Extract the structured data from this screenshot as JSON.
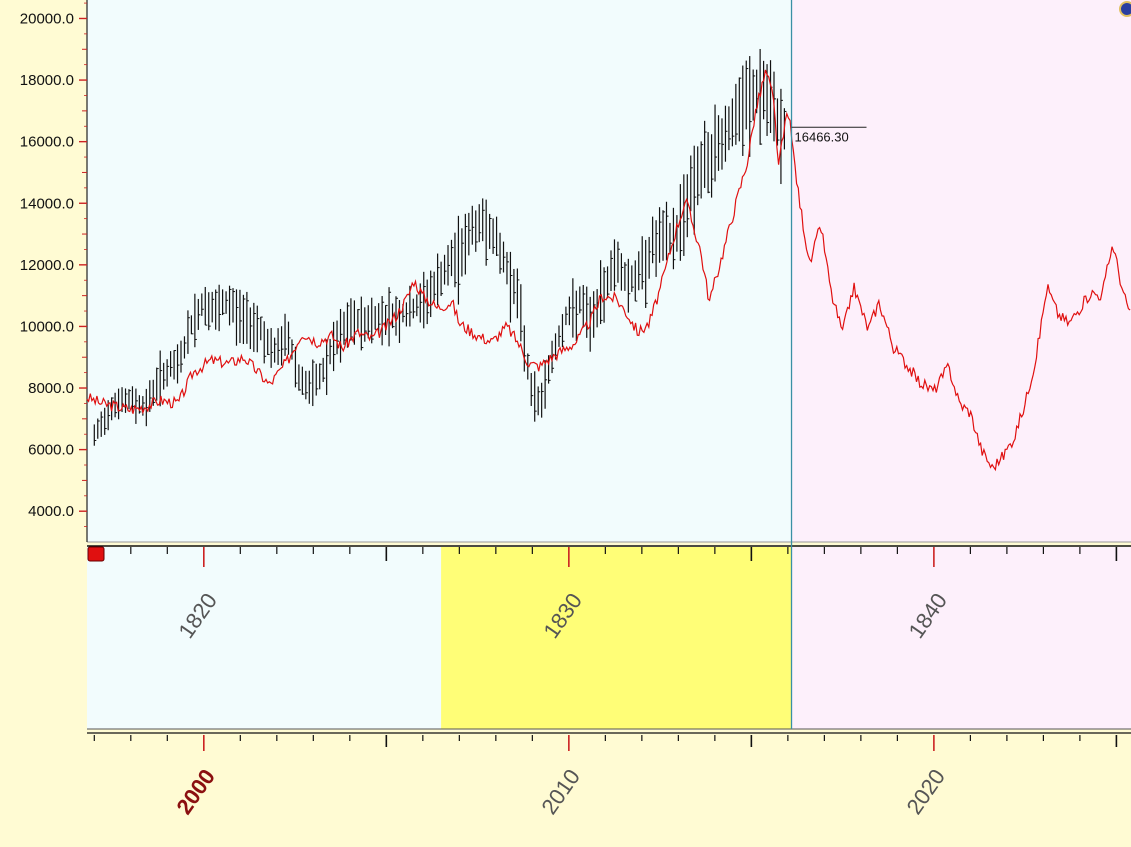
{
  "colors": {
    "page_bg": "#fffbd3",
    "history_bg": "#f2fcfd",
    "forecast_bg": "#fdf0fb",
    "highlight_bg": "#fffe77",
    "divider": "#3a8fa5",
    "price_bars": "#111111",
    "overlay_line": "#e01010",
    "marker": "#e01010",
    "tick_red": "#cc2222",
    "bold_label": "#8b1010"
  },
  "icons": {
    "range-marker": "red-square-icon",
    "corner": "globe-icon"
  },
  "chart_data": {
    "type": "line",
    "title": "",
    "yticks": [
      "20000.0",
      "18000.0",
      "16000.0",
      "14000.0",
      "12000.0",
      "10000.0",
      "8000.0",
      "6000.0",
      "4000.0"
    ],
    "ylim": [
      3000,
      20600
    ],
    "xlim": [
      1996.8,
      2025.4
    ],
    "bottom_axis": {
      "ticks": [
        "2000",
        "2010",
        "2020"
      ],
      "highlight": "2000"
    },
    "middle_axis": {
      "ticks": [
        "1820",
        "1830",
        "1840"
      ],
      "offset_years": 180
    },
    "forecast_start": 2016.1,
    "highlight_range": [
      1826.5,
      1836.1
    ],
    "callout": {
      "label": "16466.30",
      "value": 16466.3,
      "x": 2016.1
    },
    "series": [
      {
        "kind": "ohlc",
        "x_start": 1997.0,
        "x_end": 2016.0,
        "points": [
          [
            1997.0,
            6500
          ],
          [
            1997.5,
            7600
          ],
          [
            1998.0,
            7700
          ],
          [
            1998.4,
            7500
          ],
          [
            1998.8,
            8500
          ],
          [
            1999.3,
            8900
          ],
          [
            1999.7,
            10300
          ],
          [
            2000.0,
            10900
          ],
          [
            2000.3,
            10600
          ],
          [
            2000.7,
            10900
          ],
          [
            2001.0,
            10500
          ],
          [
            2001.5,
            10200
          ],
          [
            2001.9,
            9200
          ],
          [
            2002.3,
            9900
          ],
          [
            2002.6,
            8500
          ],
          [
            2002.9,
            8100
          ],
          [
            2003.2,
            8500
          ],
          [
            2003.6,
            9600
          ],
          [
            2004.0,
            10300
          ],
          [
            2004.5,
            10300
          ],
          [
            2005.0,
            10500
          ],
          [
            2005.5,
            10500
          ],
          [
            2005.9,
            10800
          ],
          [
            2006.3,
            11400
          ],
          [
            2006.7,
            12100
          ],
          [
            2007.0,
            12600
          ],
          [
            2007.4,
            13400
          ],
          [
            2007.8,
            13500
          ],
          [
            2008.1,
            12600
          ],
          [
            2008.4,
            11800
          ],
          [
            2008.6,
            11200
          ],
          [
            2008.85,
            9000
          ],
          [
            2009.0,
            8000
          ],
          [
            2009.2,
            7600
          ],
          [
            2009.5,
            9000
          ],
          [
            2009.9,
            10400
          ],
          [
            2010.3,
            10900
          ],
          [
            2010.6,
            10300
          ],
          [
            2010.9,
            11200
          ],
          [
            2011.3,
            12400
          ],
          [
            2011.6,
            11600
          ],
          [
            2011.9,
            11800
          ],
          [
            2012.3,
            12800
          ],
          [
            2012.6,
            13100
          ],
          [
            2012.9,
            13000
          ],
          [
            2013.2,
            14300
          ],
          [
            2013.5,
            15200
          ],
          [
            2013.9,
            15700
          ],
          [
            2014.2,
            16400
          ],
          [
            2014.6,
            17000
          ],
          [
            2014.9,
            17600
          ],
          [
            2015.3,
            17900
          ],
          [
            2015.6,
            17200
          ],
          [
            2015.8,
            16800
          ],
          [
            2016.0,
            16500
          ]
        ]
      },
      {
        "kind": "line",
        "points": [
          [
            1996.8,
            7700
          ],
          [
            1997.2,
            7500
          ],
          [
            1997.6,
            7400
          ],
          [
            1998.0,
            7300
          ],
          [
            1998.4,
            7400
          ],
          [
            1998.8,
            7600
          ],
          [
            1999.3,
            7500
          ],
          [
            1999.7,
            8500
          ],
          [
            2000.2,
            8900
          ],
          [
            2000.7,
            8800
          ],
          [
            2001.1,
            9000
          ],
          [
            2001.5,
            8500
          ],
          [
            2001.8,
            8100
          ],
          [
            2002.3,
            8900
          ],
          [
            2002.7,
            9800
          ],
          [
            2003.1,
            9500
          ],
          [
            2003.5,
            9700
          ],
          [
            2003.8,
            9300
          ],
          [
            2004.2,
            9800
          ],
          [
            2004.6,
            9600
          ],
          [
            2005.0,
            10000
          ],
          [
            2005.3,
            10400
          ],
          [
            2005.6,
            11000
          ],
          [
            2005.75,
            11500
          ],
          [
            2006.0,
            11000
          ],
          [
            2006.4,
            10600
          ],
          [
            2006.8,
            10800
          ],
          [
            2007.0,
            10100
          ],
          [
            2007.5,
            9700
          ],
          [
            2007.9,
            9500
          ],
          [
            2008.3,
            10000
          ],
          [
            2008.6,
            9500
          ],
          [
            2008.9,
            8800
          ],
          [
            2009.2,
            8700
          ],
          [
            2009.4,
            8900
          ],
          [
            2009.8,
            9200
          ],
          [
            2010.2,
            9500
          ],
          [
            2010.6,
            10200
          ],
          [
            2010.9,
            11000
          ],
          [
            2011.3,
            10900
          ],
          [
            2011.6,
            10400
          ],
          [
            2011.9,
            9800
          ],
          [
            2012.2,
            10100
          ],
          [
            2012.5,
            11200
          ],
          [
            2012.9,
            13000
          ],
          [
            2013.2,
            14100
          ],
          [
            2013.6,
            12500
          ],
          [
            2013.85,
            10800
          ],
          [
            2014.2,
            12300
          ],
          [
            2014.6,
            14100
          ],
          [
            2014.9,
            15400
          ],
          [
            2015.1,
            16900
          ],
          [
            2015.4,
            18300
          ],
          [
            2015.6,
            17400
          ],
          [
            2015.75,
            15200
          ],
          [
            2016.0,
            17100
          ],
          [
            2016.3,
            14200
          ],
          [
            2016.6,
            12000
          ],
          [
            2016.9,
            13300
          ],
          [
            2017.2,
            11000
          ],
          [
            2017.5,
            9800
          ],
          [
            2017.8,
            11300
          ],
          [
            2018.2,
            9900
          ],
          [
            2018.5,
            10800
          ],
          [
            2018.9,
            9300
          ],
          [
            2019.3,
            8700
          ],
          [
            2019.6,
            8200
          ],
          [
            2020.0,
            7900
          ],
          [
            2020.4,
            8700
          ],
          [
            2020.7,
            7500
          ],
          [
            2021.0,
            7200
          ],
          [
            2021.3,
            6000
          ],
          [
            2021.6,
            5400
          ],
          [
            2021.9,
            5800
          ],
          [
            2022.2,
            6400
          ],
          [
            2022.5,
            7500
          ],
          [
            2022.8,
            9000
          ],
          [
            2023.1,
            11300
          ],
          [
            2023.4,
            10400
          ],
          [
            2023.7,
            10100
          ],
          [
            2024.0,
            10600
          ],
          [
            2024.3,
            11100
          ],
          [
            2024.6,
            11000
          ],
          [
            2024.9,
            12700
          ],
          [
            2025.2,
            11000
          ],
          [
            2025.4,
            10400
          ]
        ]
      }
    ]
  }
}
